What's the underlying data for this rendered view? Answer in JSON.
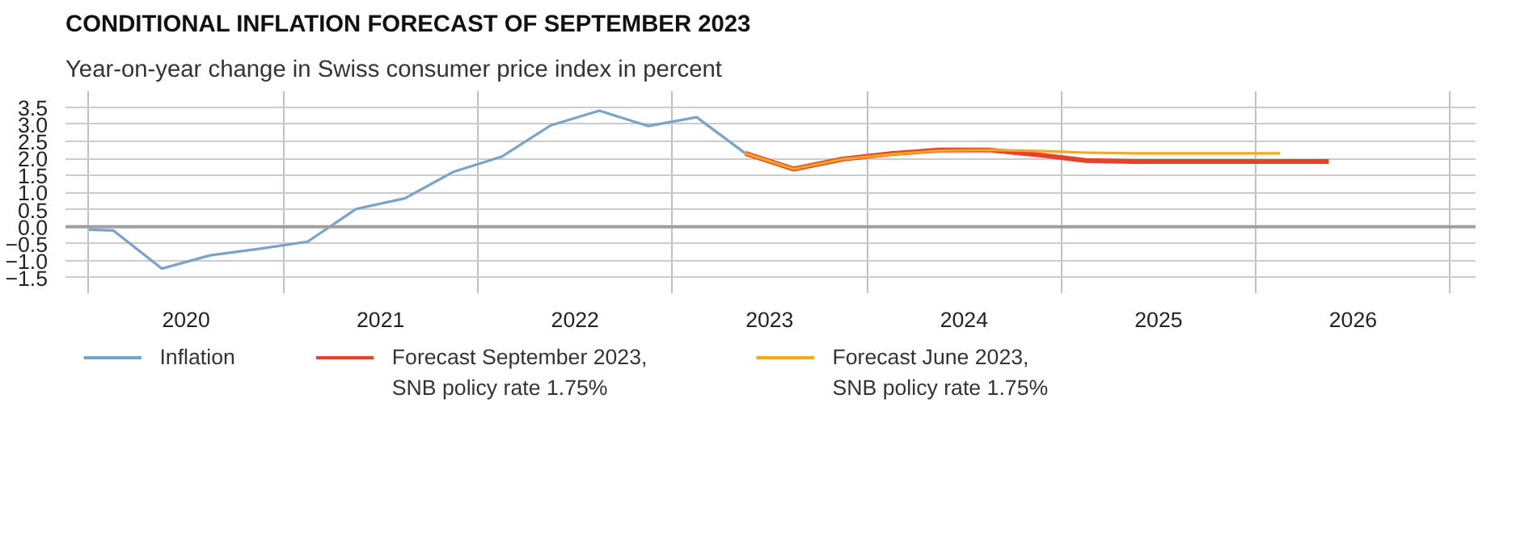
{
  "chart_data": {
    "type": "line",
    "title": "CONDITIONAL INFLATION FORECAST OF SEPTEMBER 2023",
    "subtitle": "Year-on-year change in Swiss consumer price index in percent",
    "xlim": [
      2019.88,
      2027.13
    ],
    "xticks": [
      {
        "value": 2020,
        "label": null
      },
      {
        "value": 2020.5,
        "label": "2020"
      },
      {
        "value": 2021,
        "label": null
      },
      {
        "value": 2021.5,
        "label": "2021"
      },
      {
        "value": 2022,
        "label": null
      },
      {
        "value": 2022.5,
        "label": "2022"
      },
      {
        "value": 2023,
        "label": null
      },
      {
        "value": 2023.5,
        "label": "2023"
      },
      {
        "value": 2024,
        "label": null
      },
      {
        "value": 2024.5,
        "label": "2024"
      },
      {
        "value": 2025,
        "label": null
      },
      {
        "value": 2025.5,
        "label": "2025"
      },
      {
        "value": 2026,
        "label": null
      },
      {
        "value": 2026.5,
        "label": "2026"
      },
      {
        "value": 2027,
        "label": null
      }
    ],
    "ylim": [
      -1.95,
      3.97
    ],
    "yticks": [
      {
        "value": -1.5,
        "label": "−1.5"
      },
      {
        "value": -1.0,
        "label": "−1.0"
      },
      {
        "value": -0.5,
        "label": "−0.5"
      },
      {
        "value": 0.0,
        "label": "0.0"
      },
      {
        "value": 0.5,
        "label": "0.5"
      },
      {
        "value": 1.0,
        "label": "1.0"
      },
      {
        "value": 1.5,
        "label": "1.5"
      },
      {
        "value": 2.0,
        "label": "2.0"
      },
      {
        "value": 2.5,
        "label": "2.5"
      },
      {
        "value": 3.0,
        "label": "3.0"
      },
      {
        "value": 3.5,
        "label": "3.5"
      }
    ],
    "grid": true,
    "legend": "bottom",
    "ref_lines": [
      {
        "axis": "y",
        "value": 0,
        "color": "#a0a0a0"
      }
    ],
    "series": [
      {
        "name": "Inflation",
        "color": "#7aa3c8",
        "x": [
          2020.0,
          2020.125,
          2020.375,
          2020.625,
          2020.875,
          2021.125,
          2021.375,
          2021.625,
          2021.875,
          2022.125,
          2022.375,
          2022.625,
          2022.875,
          2023.125,
          2023.375
        ],
        "values": [
          -0.09,
          -0.11,
          -1.23,
          -0.84,
          -0.65,
          -0.44,
          0.52,
          0.83,
          1.61,
          2.06,
          2.97,
          3.4,
          2.95,
          3.21,
          2.15
        ]
      },
      {
        "name": "Forecast September 2023,\nSNB policy rate 1.75%",
        "color": "#e8412c",
        "x": [
          2023.375,
          2023.625,
          2023.875,
          2024.125,
          2024.375,
          2024.625,
          2024.875,
          2025.125,
          2025.375,
          2025.625,
          2025.875,
          2026.125,
          2026.375
        ],
        "values": [
          2.15,
          1.69,
          1.98,
          2.14,
          2.25,
          2.25,
          2.11,
          1.94,
          1.91,
          1.91,
          1.91,
          1.91,
          1.91
        ]
      },
      {
        "name": "Forecast June 2023,\nSNB policy rate 1.75%",
        "color": "#f5a81c",
        "x": [
          2023.375,
          2023.625,
          2023.875,
          2024.125,
          2024.375,
          2024.625,
          2024.875,
          2025.125,
          2025.375,
          2025.625,
          2025.875,
          2026.125
        ],
        "values": [
          2.15,
          1.69,
          1.98,
          2.12,
          2.23,
          2.25,
          2.22,
          2.17,
          2.15,
          2.15,
          2.15,
          2.15
        ]
      }
    ]
  }
}
